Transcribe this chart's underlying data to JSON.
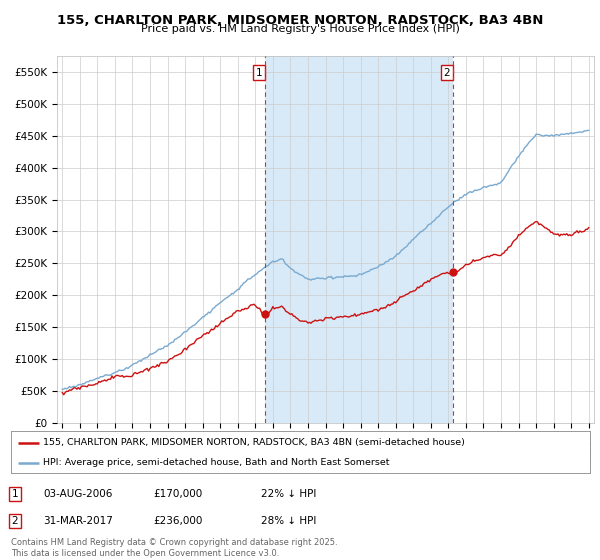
{
  "title_line1": "155, CHARLTON PARK, MIDSOMER NORTON, RADSTOCK, BA3 4BN",
  "title_line2": "Price paid vs. HM Land Registry's House Price Index (HPI)",
  "ylim": [
    0,
    575000
  ],
  "yticks": [
    0,
    50000,
    100000,
    150000,
    200000,
    250000,
    300000,
    350000,
    400000,
    450000,
    500000,
    550000
  ],
  "ytick_labels": [
    "£0",
    "£50K",
    "£100K",
    "£150K",
    "£200K",
    "£250K",
    "£300K",
    "£350K",
    "£400K",
    "£450K",
    "£500K",
    "£550K"
  ],
  "xmin_year": 1995,
  "xmax_year": 2025,
  "xticks": [
    1995,
    1996,
    1997,
    1998,
    1999,
    2000,
    2001,
    2002,
    2003,
    2004,
    2005,
    2006,
    2007,
    2008,
    2009,
    2010,
    2011,
    2012,
    2013,
    2014,
    2015,
    2016,
    2017,
    2018,
    2019,
    2020,
    2021,
    2022,
    2023,
    2024,
    2025
  ],
  "hpi_color": "#7aaad0",
  "price_color": "#cc1111",
  "shade_color": "#d8eaf7",
  "marker1_x": 2006.58,
  "marker1_y": 170000,
  "marker2_x": 2017.25,
  "marker2_y": 236000,
  "vline1_x": 2006.58,
  "vline2_x": 2017.25,
  "legend_line1": "155, CHARLTON PARK, MIDSOMER NORTON, RADSTOCK, BA3 4BN (semi-detached house)",
  "legend_line2": "HPI: Average price, semi-detached house, Bath and North East Somerset",
  "annotation1_date": "03-AUG-2006",
  "annotation1_price": "£170,000",
  "annotation1_hpi": "22% ↓ HPI",
  "annotation2_date": "31-MAR-2017",
  "annotation2_price": "£236,000",
  "annotation2_hpi": "28% ↓ HPI",
  "footer": "Contains HM Land Registry data © Crown copyright and database right 2025.\nThis data is licensed under the Open Government Licence v3.0.",
  "bg_color": "#ffffff",
  "grid_color": "#cccccc"
}
